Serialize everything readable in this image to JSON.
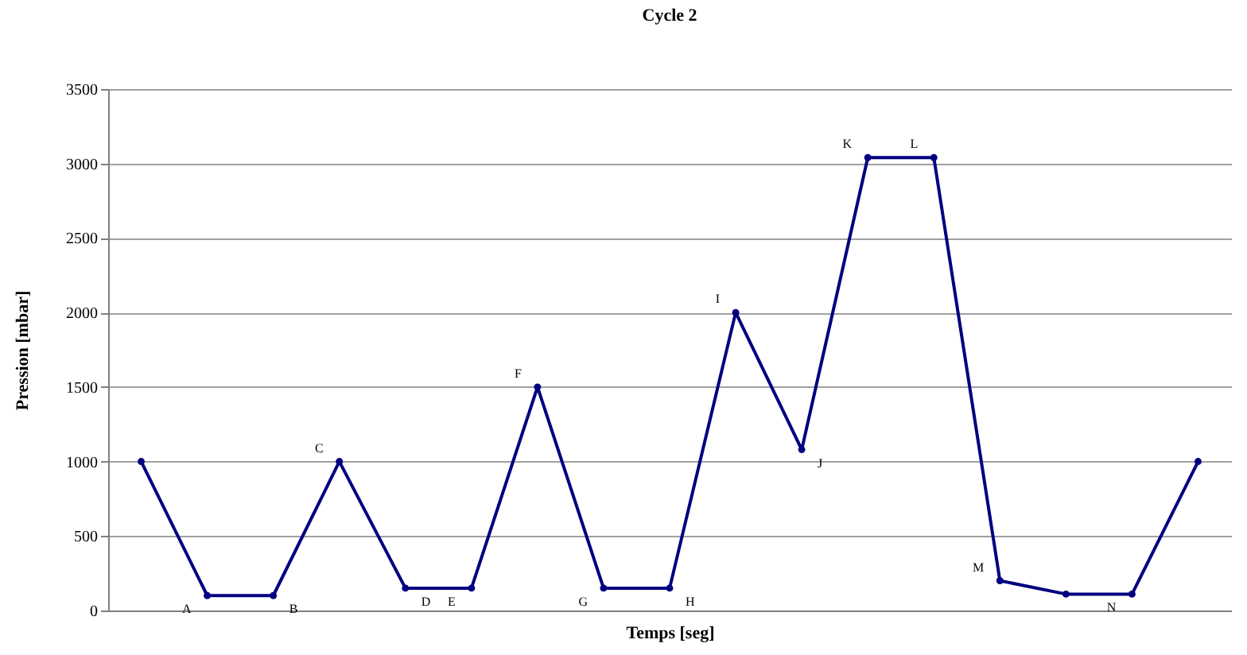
{
  "chart_data": {
    "type": "line",
    "title": "Cycle 2",
    "xlabel": "Temps [seg]",
    "ylabel": "Pression [mbar]",
    "categories": [
      null,
      null,
      null,
      null,
      null,
      null,
      null,
      null,
      null,
      null,
      null,
      null,
      null,
      null,
      null,
      null,
      null
    ],
    "series": [
      {
        "color": "#000080",
        "values": [
          1000,
          100,
          100,
          1000,
          150,
          150,
          1500,
          150,
          150,
          2000,
          1080,
          3040,
          3040,
          200,
          110,
          110,
          1000
        ],
        "value_labels": [
          null,
          "A",
          "B",
          "C",
          "D",
          "E",
          "F",
          "G",
          "H",
          "I",
          "J",
          "K",
          "L",
          "M",
          null,
          "N",
          null
        ]
      }
    ],
    "ylim": [
      0,
      3500
    ],
    "yticks": [
      0,
      500,
      1000,
      1500,
      2000,
      2500,
      3000,
      3500
    ],
    "grid": "y",
    "legend": false,
    "marker": "circle",
    "line_style": "solid"
  }
}
